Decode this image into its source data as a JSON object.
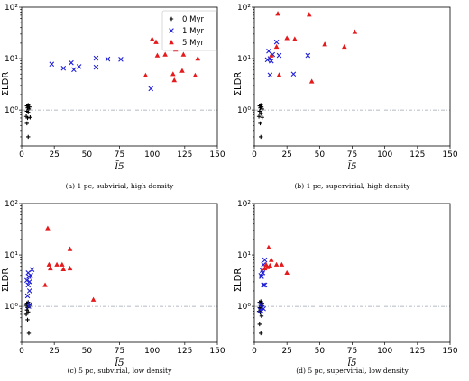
{
  "colors": {
    "s0": "#000000",
    "s1": "#1f1fd6",
    "s2": "#e41a1c",
    "ref": "#9aa6b2"
  },
  "chart_data": [
    {
      "type": "scatter",
      "caption": "(a) 1 pc, subvirial, high density",
      "xlabel": "l̃5",
      "ylabel": "ΣLDR",
      "xlim": [
        0,
        150
      ],
      "ylim": [
        0.2,
        100
      ],
      "yscale": "log",
      "xticks": [
        "0",
        "25",
        "50",
        "75",
        "100",
        "125",
        "150"
      ],
      "yticks": [
        "10⁰",
        "10¹",
        "10²"
      ],
      "reference_line_y": 1,
      "legend": {
        "placement": "upper-center",
        "entries": [
          "0 Myr",
          "1 Myr",
          "5 Myr"
        ]
      },
      "series": [
        {
          "name": "0 Myr",
          "marker": "+",
          "points": [
            [
              4,
              1.2
            ],
            [
              5,
              1.25
            ],
            [
              4.5,
              1.1
            ],
            [
              5.5,
              1.05
            ],
            [
              6,
              1.15
            ],
            [
              4,
              0.95
            ],
            [
              5,
              0.9
            ],
            [
              3.5,
              0.75
            ],
            [
              4.5,
              0.7
            ],
            [
              6.5,
              0.72
            ],
            [
              4,
              0.55
            ],
            [
              5,
              0.3
            ]
          ]
        },
        {
          "name": "1 Myr",
          "marker": "x",
          "points": [
            [
              23,
              7.8
            ],
            [
              32,
              6.5
            ],
            [
              38,
              8.3
            ],
            [
              40,
              6.1
            ],
            [
              44,
              7.0
            ],
            [
              57,
              10.2
            ],
            [
              57,
              6.8
            ],
            [
              66,
              9.8
            ],
            [
              76,
              9.7
            ],
            [
              99,
              2.6
            ]
          ]
        },
        {
          "name": "5 Myr",
          "marker": "^",
          "points": [
            [
              95,
              4.7
            ],
            [
              100,
              24
            ],
            [
              103,
              21
            ],
            [
              104,
              11.5
            ],
            [
              110,
              12
            ],
            [
              116,
              5.0
            ],
            [
              117,
              3.8
            ],
            [
              118,
              15
            ],
            [
              123,
              5.8
            ],
            [
              124,
              12
            ],
            [
              130,
              24
            ],
            [
              133,
              4.7
            ],
            [
              135,
              10
            ]
          ]
        }
      ]
    },
    {
      "type": "scatter",
      "caption": "(b) 1 pc, supervirial, high density",
      "xlabel": "l̃5",
      "ylabel": "ΣLDR",
      "xlim": [
        0,
        150
      ],
      "ylim": [
        0.2,
        100
      ],
      "yscale": "log",
      "xticks": [
        "0",
        "25",
        "50",
        "75",
        "100",
        "125",
        "150"
      ],
      "yticks": [
        "10⁰",
        "10¹",
        "10²"
      ],
      "reference_line_y": 1,
      "series": [
        {
          "name": "0 Myr",
          "marker": "+",
          "points": [
            [
              4,
              1.2
            ],
            [
              5,
              1.25
            ],
            [
              4.5,
              1.1
            ],
            [
              6,
              1.05
            ],
            [
              5.5,
              1.15
            ],
            [
              4,
              0.95
            ],
            [
              5,
              0.85
            ],
            [
              3.5,
              0.75
            ],
            [
              6,
              0.72
            ],
            [
              4.5,
              0.55
            ],
            [
              5,
              0.3
            ]
          ]
        },
        {
          "name": "1 Myr",
          "marker": "x",
          "points": [
            [
              10,
              9.5
            ],
            [
              11,
              14
            ],
            [
              12,
              10
            ],
            [
              12,
              4.8
            ],
            [
              13,
              9.0
            ],
            [
              14,
              12
            ],
            [
              17,
              21
            ],
            [
              19,
              11.5
            ],
            [
              30,
              5.0
            ],
            [
              41,
              11.5
            ]
          ]
        },
        {
          "name": "5 Myr",
          "marker": "^",
          "points": [
            [
              13,
              11.5
            ],
            [
              17,
              17
            ],
            [
              18,
              75
            ],
            [
              19,
              4.8
            ],
            [
              25,
              25
            ],
            [
              31,
              24
            ],
            [
              42,
              72
            ],
            [
              44,
              3.6
            ],
            [
              54,
              19
            ],
            [
              69,
              17
            ],
            [
              77,
              33
            ]
          ]
        }
      ]
    },
    {
      "type": "scatter",
      "caption": "(c) 5 pc, subvirial, low density",
      "xlabel": "l̃5",
      "ylabel": "ΣLDR",
      "xlim": [
        0,
        150
      ],
      "ylim": [
        0.2,
        100
      ],
      "yscale": "log",
      "xticks": [
        "0",
        "25",
        "50",
        "75",
        "100",
        "125",
        "150"
      ],
      "yticks": [
        "10⁰",
        "10¹",
        "10²"
      ],
      "reference_line_y": 1,
      "series": [
        {
          "name": "0 Myr",
          "marker": "+",
          "points": [
            [
              4,
              1.15
            ],
            [
              5,
              1.2
            ],
            [
              3.5,
              1.05
            ],
            [
              4.5,
              0.95
            ],
            [
              5.5,
              1.0
            ],
            [
              4,
              0.85
            ],
            [
              5,
              0.78
            ],
            [
              3.5,
              0.7
            ],
            [
              4.5,
              0.55
            ],
            [
              5.5,
              0.3
            ]
          ]
        },
        {
          "name": "1 Myr",
          "marker": "x",
          "points": [
            [
              4,
              3.2
            ],
            [
              5,
              4.5
            ],
            [
              5.5,
              3.8
            ],
            [
              6,
              3.0
            ],
            [
              7,
              4.0
            ],
            [
              8,
              5.2
            ],
            [
              5,
              2.6
            ],
            [
              6,
              2.0
            ],
            [
              4.5,
              1.6
            ],
            [
              6.5,
              1.1
            ],
            [
              5.5,
              1.0
            ]
          ]
        },
        {
          "name": "5 Myr",
          "marker": "^",
          "points": [
            [
              18,
              2.6
            ],
            [
              20,
              33
            ],
            [
              21,
              6.5
            ],
            [
              22,
              5.5
            ],
            [
              27,
              6.5
            ],
            [
              31,
              6.5
            ],
            [
              32,
              5.3
            ],
            [
              37,
              13
            ],
            [
              37,
              5.5
            ],
            [
              55,
              1.35
            ]
          ]
        }
      ]
    },
    {
      "type": "scatter",
      "caption": "(d) 5 pc, supervirial, low density",
      "xlabel": "l̃5",
      "ylabel": "ΣLDR",
      "xlim": [
        0,
        150
      ],
      "ylim": [
        0.2,
        100
      ],
      "yscale": "log",
      "xticks": [
        "0",
        "25",
        "50",
        "75",
        "100",
        "125",
        "150"
      ],
      "yticks": [
        "10⁰",
        "10¹",
        "10²"
      ],
      "reference_line_y": 1,
      "series": [
        {
          "name": "0 Myr",
          "marker": "+",
          "points": [
            [
              4,
              1.2
            ],
            [
              5,
              1.25
            ],
            [
              4.5,
              1.1
            ],
            [
              5.5,
              1.05
            ],
            [
              6,
              1.15
            ],
            [
              4,
              0.95
            ],
            [
              5,
              0.9
            ],
            [
              3.5,
              0.8
            ],
            [
              4.5,
              0.75
            ],
            [
              5.5,
              0.65
            ],
            [
              4,
              0.45
            ],
            [
              5,
              0.3
            ]
          ]
        },
        {
          "name": "1 Myr",
          "marker": "x",
          "points": [
            [
              5,
              4.0
            ],
            [
              6,
              5.0
            ],
            [
              7,
              6.5
            ],
            [
              8,
              8.0
            ],
            [
              6.5,
              4.5
            ],
            [
              5.5,
              3.8
            ],
            [
              7,
              2.6
            ],
            [
              8,
              2.6
            ],
            [
              5,
              1.1
            ],
            [
              6,
              0.95
            ],
            [
              5.5,
              0.8
            ],
            [
              4.5,
              0.85
            ],
            [
              7,
              0.9
            ]
          ]
        },
        {
          "name": "5 Myr",
          "marker": "^",
          "points": [
            [
              8,
              5.5
            ],
            [
              9,
              6.5
            ],
            [
              10,
              5.8
            ],
            [
              11,
              14
            ],
            [
              12,
              6.2
            ],
            [
              13,
              8.0
            ],
            [
              17,
              6.5
            ],
            [
              21,
              6.5
            ],
            [
              25,
              4.5
            ]
          ]
        }
      ]
    }
  ]
}
